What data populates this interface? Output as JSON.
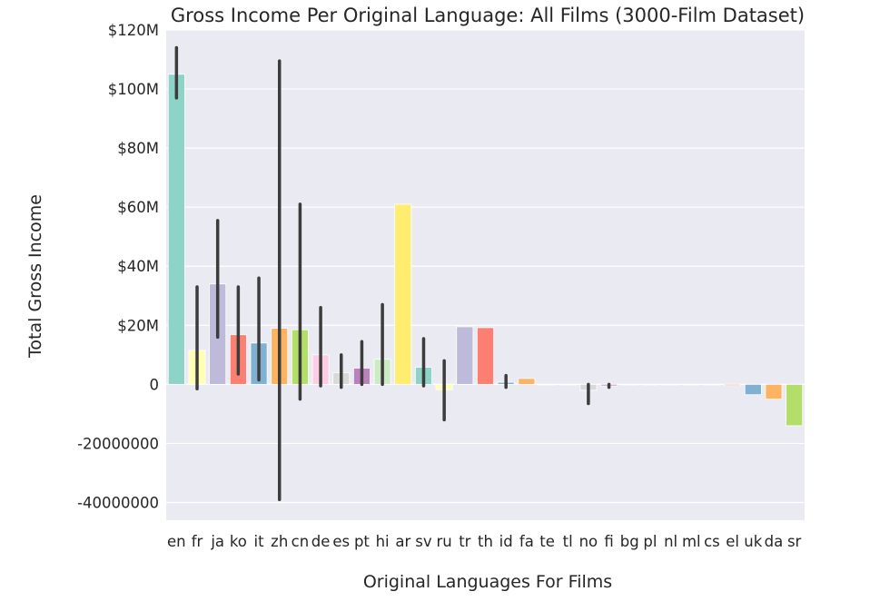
{
  "chart_data": {
    "type": "bar",
    "title": "Gross Income Per Original Language: All Films (3000-Film Dataset)",
    "xlabel": "Original Languages For Films",
    "ylabel": "Total Gross Income",
    "ylim": [
      -46000000,
      120000000
    ],
    "grid": true,
    "background": "#eaeaf2",
    "yticks": [
      {
        "value": 120000000,
        "label": "$120M"
      },
      {
        "value": 100000000,
        "label": "$100M"
      },
      {
        "value": 80000000,
        "label": "$80M"
      },
      {
        "value": 60000000,
        "label": "$60M"
      },
      {
        "value": 40000000,
        "label": "$40M"
      },
      {
        "value": 20000000,
        "label": "$20M"
      },
      {
        "value": 0,
        "label": "0"
      },
      {
        "value": -20000000,
        "label": "-20000000"
      },
      {
        "value": -40000000,
        "label": "-40000000"
      }
    ],
    "categories": [
      "en",
      "fr",
      "ja",
      "ko",
      "it",
      "zh",
      "cn",
      "de",
      "es",
      "pt",
      "hi",
      "ar",
      "sv",
      "ru",
      "tr",
      "th",
      "id",
      "fa",
      "te",
      "tl",
      "no",
      "fi",
      "bg",
      "pl",
      "nl",
      "ml",
      "cs",
      "el",
      "uk",
      "da",
      "sr"
    ],
    "values": [
      105000000,
      11500000,
      34000000,
      16800000,
      14000000,
      19000000,
      18500000,
      10000000,
      4000000,
      5500000,
      8500000,
      61000000,
      5800000,
      -1800000,
      19500000,
      19200000,
      700000,
      2000000,
      0,
      0,
      -2000000,
      -500000,
      0,
      0,
      0,
      0,
      0,
      -400000,
      -3500000,
      -5000000,
      -14000000
    ],
    "error_low": [
      97000000,
      -1500000,
      16000000,
      3500000,
      1500000,
      -39000000,
      -5000000,
      -500000,
      -1000000,
      0,
      0,
      null,
      -500000,
      -12000000,
      null,
      null,
      -1000000,
      null,
      null,
      null,
      -6500000,
      -1000000,
      null,
      null,
      null,
      null,
      null,
      null,
      null,
      null,
      null
    ],
    "error_high": [
      114000000,
      33000000,
      55500000,
      33000000,
      36000000,
      109500000,
      61000000,
      26000000,
      10000000,
      14500000,
      27000000,
      null,
      15500000,
      8000000,
      null,
      null,
      3000000,
      null,
      null,
      null,
      0,
      0,
      null,
      null,
      null,
      null,
      null,
      null,
      null,
      null,
      null
    ],
    "colors": [
      "#8dd3c7",
      "#ffffb3",
      "#bebada",
      "#fb8072",
      "#80b1d3",
      "#fdb462",
      "#b3de69",
      "#fccde5",
      "#d9d9d9",
      "#bc80bd",
      "#ccebc5",
      "#ffed6f",
      "#8dd3c7",
      "#ffffb3",
      "#bebada",
      "#fb8072",
      "#80b1d3",
      "#fdb462",
      "#b3de69",
      "#fccde5",
      "#d9d9d9",
      "#bc80bd",
      "#ccebc5",
      "#ffed6f",
      "#8dd3c7",
      "#ffffb3",
      "#bebada",
      "#fb8072",
      "#80b1d3",
      "#fdb462",
      "#b3de69"
    ],
    "error_color": "#3c3c3c"
  }
}
